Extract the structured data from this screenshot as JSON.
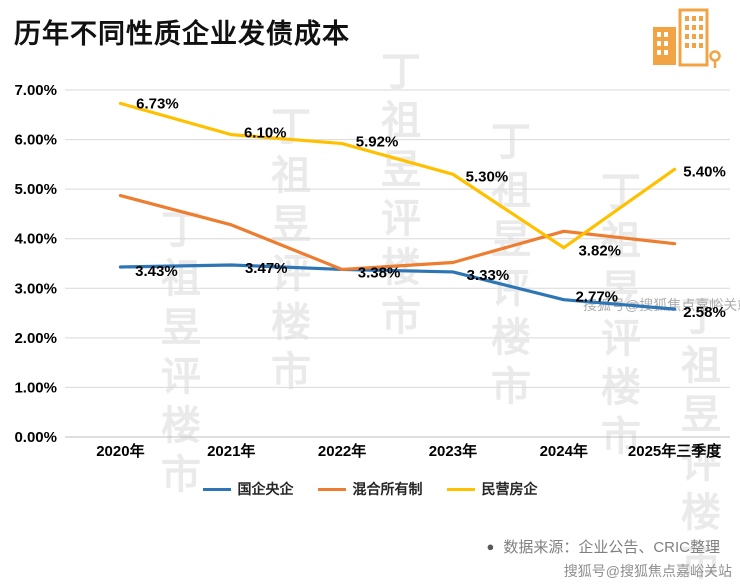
{
  "page": {
    "title": "历年不同性质企业发债成本",
    "source_bullet": "●",
    "source_note": "数据来源：企业公告、CRIC整理",
    "watermark_text": "丁祖昱评楼市",
    "sohu_watermark": "搜狐号@搜狐焦点嘉峪关站",
    "sohu_footer": "搜狐号@搜狐焦点嘉峪关站",
    "icon_name": "buildings-icon",
    "accent_colors": {
      "blue": "#2E75B6",
      "orange": "#ED7D31",
      "yellow": "#FFC000",
      "icon_orange": "#F2A444",
      "grid_gray": "#D9D9D9"
    }
  },
  "chart_data": {
    "type": "line",
    "title": "历年不同性质企业发债成本",
    "categories": [
      "2020年",
      "2021年",
      "2022年",
      "2023年",
      "2024年",
      "2025年三季度"
    ],
    "series": [
      {
        "name": "国企央企",
        "color": "#2E75B6",
        "values": [
          3.43,
          3.47,
          3.38,
          3.33,
          2.77,
          2.58
        ],
        "labels": [
          "3.43%",
          "3.47%",
          "3.38%",
          "3.33%",
          "2.77%",
          "2.58%"
        ],
        "label_offsets": [
          [
            36,
            4
          ],
          [
            35,
            3
          ],
          [
            37,
            3
          ],
          [
            35,
            3
          ],
          [
            33,
            -3
          ],
          [
            30,
            3
          ]
        ]
      },
      {
        "name": "混合所有制",
        "color": "#ED7D31",
        "values": [
          4.87,
          4.28,
          3.38,
          3.52,
          4.15,
          3.9
        ],
        "labels": [
          "",
          "",
          "",
          "",
          "",
          ""
        ],
        "label_offsets": [
          [
            0,
            0
          ],
          [
            0,
            0
          ],
          [
            0,
            0
          ],
          [
            0,
            0
          ],
          [
            0,
            0
          ],
          [
            0,
            0
          ]
        ]
      },
      {
        "name": "民营房企",
        "color": "#FFC000",
        "values": [
          6.73,
          6.1,
          5.92,
          5.3,
          3.82,
          5.4
        ],
        "labels": [
          "6.73%",
          "6.10%",
          "5.92%",
          "5.30%",
          "3.82%",
          "5.40%"
        ],
        "label_offsets": [
          [
            37,
            0
          ],
          [
            34,
            -2
          ],
          [
            35,
            -2
          ],
          [
            34,
            2
          ],
          [
            36,
            3
          ],
          [
            30,
            2
          ]
        ]
      }
    ],
    "xlabel": "",
    "ylabel": "",
    "ylim": [
      0,
      7
    ],
    "ytick_labels": [
      "0.00%",
      "1.00%",
      "2.00%",
      "3.00%",
      "4.00%",
      "5.00%",
      "6.00%",
      "7.00%"
    ],
    "grid": true,
    "legend_position": "bottom"
  }
}
